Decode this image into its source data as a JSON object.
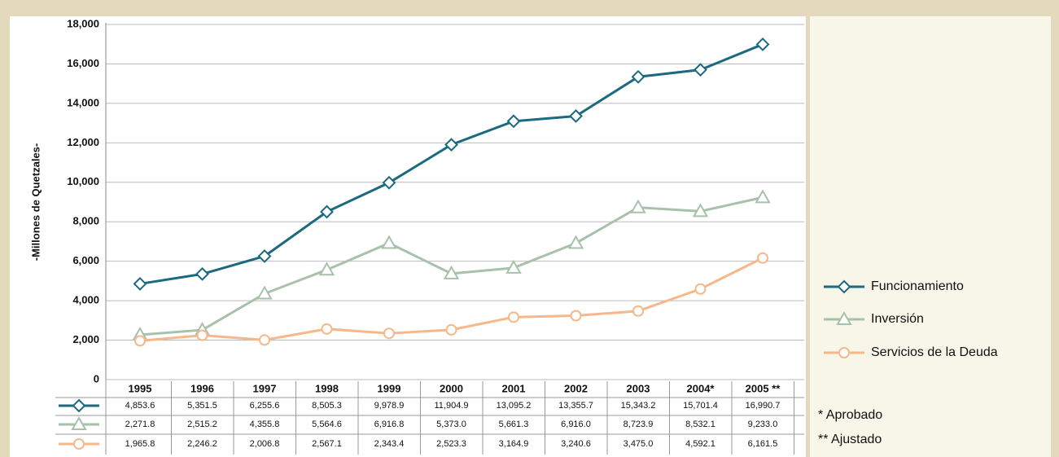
{
  "chart_data": {
    "type": "line",
    "y_label": "-Millones de Quetzales-",
    "categories": [
      "1995",
      "1996",
      "1997",
      "1998",
      "1999",
      "2000",
      "2001",
      "2002",
      "2003",
      "2004*",
      "2005 **"
    ],
    "series": [
      {
        "name": "Funcionamiento",
        "color": "#1b6a7f",
        "marker": "diamond",
        "values": [
          4853.6,
          5351.5,
          6255.6,
          8505.3,
          9978.9,
          11904.9,
          13095.2,
          13355.7,
          15343.2,
          15701.4,
          16990.7
        ],
        "value_labels": [
          "4,853.6",
          "5,351.5",
          "6,255.6",
          "8,505.3",
          "9,978.9",
          "11,904.9",
          "13,095.2",
          "13,355.7",
          "15,343.2",
          "15,701.4",
          "16,990.7"
        ]
      },
      {
        "name": "Inversión",
        "color": "#a8c1ab",
        "marker": "triangle",
        "values": [
          2271.8,
          2515.2,
          4355.8,
          5564.6,
          6916.8,
          5373.0,
          5661.3,
          6916.0,
          8723.9,
          8532.1,
          9233.0
        ],
        "value_labels": [
          "2,271.8",
          "2,515.2",
          "4,355.8",
          "5,564.6",
          "6,916.8",
          "5,373.0",
          "5,661.3",
          "6,916.0",
          "8,723.9",
          "8,532.1",
          "9,233.0"
        ]
      },
      {
        "name": "Servicios de la Deuda",
        "color": "#f6b88a",
        "marker": "circle",
        "values": [
          1965.8,
          2246.2,
          2006.8,
          2567.1,
          2343.4,
          2523.3,
          3164.9,
          3240.6,
          3475.0,
          4592.1,
          6161.5
        ],
        "value_labels": [
          "1,965.8",
          "2,246.2",
          "2,006.8",
          "2,567.1",
          "2,343.4",
          "2,523.3",
          "3,164.9",
          "3,240.6",
          "3,475.0",
          "4,592.1",
          "6,161.5"
        ]
      }
    ],
    "ylim": [
      0,
      18000
    ],
    "yticks": [
      0,
      {
        "value": 2000,
        "label": "2,000"
      },
      {
        "value": 4000,
        "label": "4,000"
      },
      {
        "value": 6000,
        "label": "6,000"
      },
      {
        "value": 8000,
        "label": "8,000"
      },
      {
        "value": 10000,
        "label": "10,000"
      },
      {
        "value": 12000,
        "label": "12,000"
      },
      {
        "value": 14000,
        "label": "14,000"
      },
      {
        "value": 16000,
        "label": "16,000"
      },
      {
        "value": 18000,
        "label": "18,000"
      }
    ],
    "grid": true,
    "legend": "right",
    "notes": [
      "*  Aprobado",
      "** Ajustado"
    ]
  }
}
